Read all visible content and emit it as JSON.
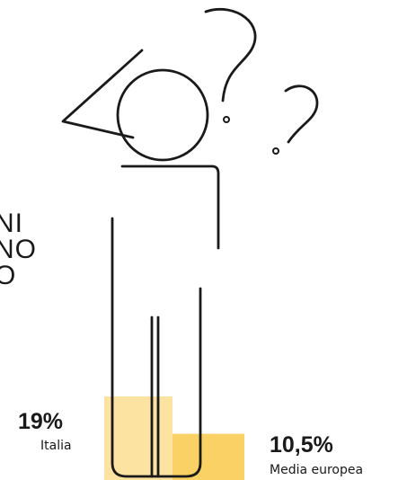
{
  "headline_lines": [
    "NI",
    "NO",
    "O"
  ],
  "colors": {
    "ink": "#1a1a1a",
    "italia": "#fde3a2",
    "europa": "#f9d164"
  },
  "chart_data": {
    "type": "bar",
    "categories": [
      "Italia",
      "Media europea"
    ],
    "series": [
      {
        "values": [
          19,
          10.5
        ]
      }
    ],
    "value_labels": [
      "19%",
      "10,5%"
    ]
  }
}
